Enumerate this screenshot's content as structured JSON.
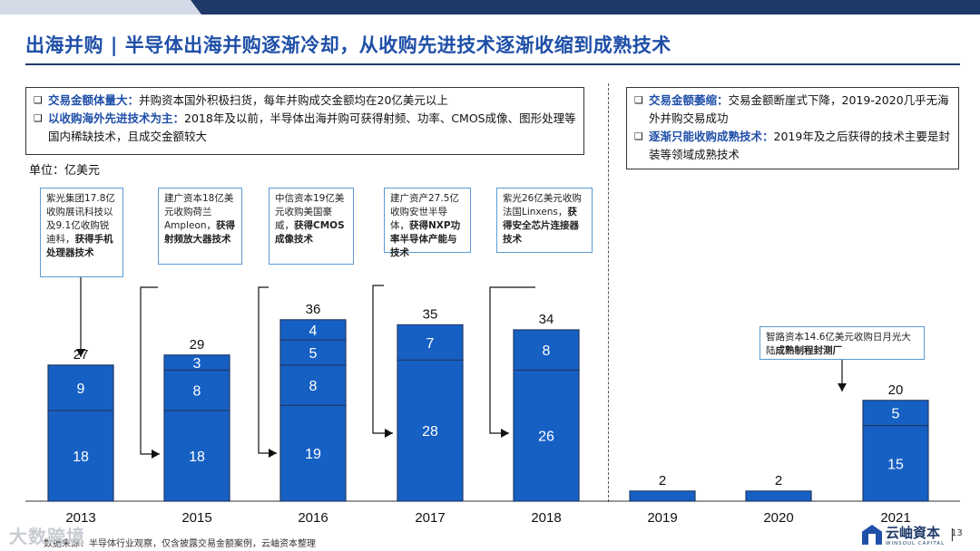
{
  "title": "出海并购 | 半导体出海并购逐渐冷却，从收购先进技术逐渐收缩到成熟技术",
  "box_left": {
    "bullet": "❑",
    "row1_head": "交易金额体量大：",
    "row1_text": "并购资本国外积极扫货，每年并购成交金额均在20亿美元以上",
    "row2_head": "以收购海外先进技术为主：",
    "row2_text": "2018年及以前，半导体出海并购可获得射频、功率、CMOS成像、图形处理等国内稀缺技术，且成交金额较大"
  },
  "box_right": {
    "bullet": "❑",
    "row1_head": "交易金额萎缩：",
    "row1_text": "交易金额断崖式下降，2019-2020几乎无海外并购交易成功",
    "row2_head": "逐渐只能收购成熟技术：",
    "row2_text": "2019年及之后获得的技术主要是封装等领域成熟技术"
  },
  "unit": "单位：亿美元",
  "callouts": [
    {
      "pre": "紫光集团17.8亿收购展讯科技以及9.1亿收购锐迪科，",
      "bold": "获得手机处理器技术"
    },
    {
      "pre": "建广资本18亿美元收购荷兰Ampleon，",
      "bold": "获得射频放大器技术"
    },
    {
      "pre": "中信资本19亿美元收购美国豪威，",
      "bold": "获得CMOS成像技术"
    },
    {
      "pre": "建广资产27.5亿收购安世半导体，",
      "bold": "获得NXP功率半导体产能与技术"
    },
    {
      "pre": "紫光26亿美元收购法国Linxens，",
      "bold": "获得安全芯片连接器技术"
    },
    {
      "pre": "智路资本14.6亿美元收购日月光大陆",
      "bold": "成熟制程封测厂"
    }
  ],
  "chart_data": {
    "type": "bar",
    "stacked": true,
    "categories": [
      "2013",
      "2015",
      "2016",
      "2017",
      "2018",
      "2019",
      "2020",
      "2021"
    ],
    "segments": [
      [
        18,
        9
      ],
      [
        18,
        8,
        3
      ],
      [
        19,
        8,
        5,
        4
      ],
      [
        28,
        7
      ],
      [
        26,
        8
      ],
      [
        2
      ],
      [
        2
      ],
      [
        15,
        5
      ]
    ],
    "totals": [
      27,
      29,
      36,
      35,
      34,
      2,
      2,
      20
    ],
    "ylim": [
      0,
      38
    ],
    "colors": {
      "bar": "#1660c4",
      "outline": "#1f3a68",
      "text_on_bar": "#ffffff",
      "callout_border": "#5b9bd5"
    }
  },
  "source": "数据来源：半导体行业观察，仅含披露交易金额案例，云岫资本整理",
  "watermark": "大数跨境",
  "logo": {
    "name": "云岫資本",
    "sub": "WINSOUL CAPITAL"
  },
  "page_number": "13"
}
